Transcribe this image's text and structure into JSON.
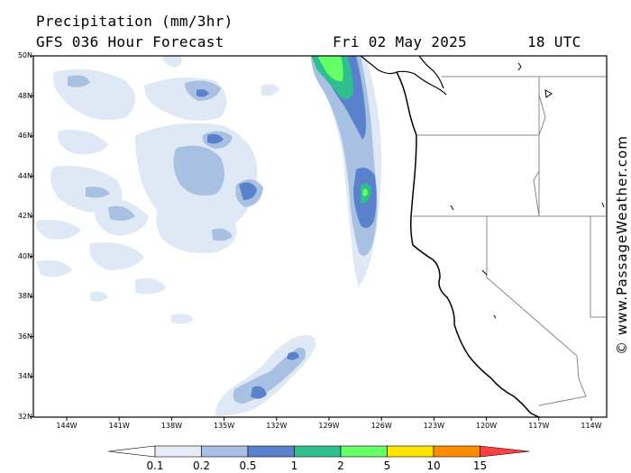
{
  "title_line1": "Precipitation (mm/3hr)",
  "title_line2": "GFS 036 Hour Forecast",
  "date_text": "Fri 02 May 2025",
  "time_text": "18 UTC",
  "credit": "© www.PassageWeather.com",
  "lat_labels": [
    "50N",
    "48N",
    "46N",
    "44N",
    "42N",
    "40N",
    "38N",
    "36N",
    "34N",
    "32N"
  ],
  "lon_labels": [
    "144W",
    "141W",
    "138W",
    "135W",
    "132W",
    "129W",
    "126W",
    "123W",
    "120W",
    "117W",
    "114W"
  ],
  "legend": {
    "values": [
      "0.1",
      "0.2",
      "0.5",
      "1",
      "2",
      "5",
      "10",
      "15"
    ],
    "colors": [
      "#e6ecf7",
      "#a8c0e2",
      "#5a82cc",
      "#2fbf8f",
      "#66ff66",
      "#ffe600",
      "#ff8c00",
      "#ff4040"
    ]
  },
  "colors": {
    "lightest": "#dfe8f5",
    "light": "#a8c0e2",
    "medium": "#5a82cc",
    "teal": "#2fbf8f",
    "green": "#66ff66",
    "land_border": "#000000",
    "state_line": "#888888"
  }
}
